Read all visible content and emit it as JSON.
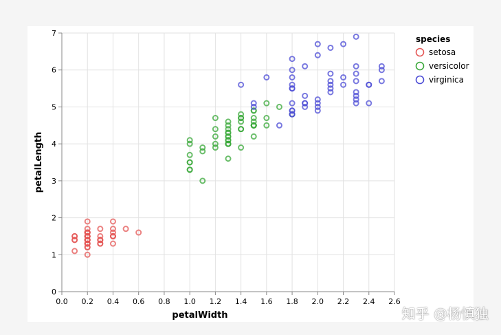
{
  "watermark": "知乎 @杨慎独",
  "chart_data": {
    "type": "scatter",
    "title": "",
    "xlabel": "petalWidth",
    "ylabel": "petalLength",
    "xlim": [
      0,
      2.6
    ],
    "ylim": [
      0,
      7
    ],
    "x_ticks": [
      "0.0",
      "0.2",
      "0.4",
      "0.6",
      "0.8",
      "1.0",
      "1.2",
      "1.4",
      "1.6",
      "1.8",
      "2.0",
      "2.2",
      "2.4",
      "2.6"
    ],
    "y_ticks": [
      "0",
      "1",
      "2",
      "3",
      "4",
      "5",
      "6",
      "7"
    ],
    "grid": true,
    "legend": {
      "title": "species",
      "position": "top-right"
    },
    "series": [
      {
        "name": "setosa",
        "color": "#e45756",
        "points": [
          [
            0.2,
            1.4
          ],
          [
            0.2,
            1.4
          ],
          [
            0.2,
            1.3
          ],
          [
            0.2,
            1.5
          ],
          [
            0.2,
            1.4
          ],
          [
            0.4,
            1.7
          ],
          [
            0.3,
            1.4
          ],
          [
            0.2,
            1.5
          ],
          [
            0.2,
            1.4
          ],
          [
            0.1,
            1.5
          ],
          [
            0.2,
            1.5
          ],
          [
            0.2,
            1.6
          ],
          [
            0.1,
            1.4
          ],
          [
            0.1,
            1.1
          ],
          [
            0.2,
            1.2
          ],
          [
            0.4,
            1.5
          ],
          [
            0.4,
            1.3
          ],
          [
            0.3,
            1.4
          ],
          [
            0.3,
            1.7
          ],
          [
            0.3,
            1.5
          ],
          [
            0.2,
            1.7
          ],
          [
            0.4,
            1.5
          ],
          [
            0.2,
            1.0
          ],
          [
            0.5,
            1.7
          ],
          [
            0.2,
            1.9
          ],
          [
            0.2,
            1.6
          ],
          [
            0.4,
            1.6
          ],
          [
            0.2,
            1.5
          ],
          [
            0.2,
            1.4
          ],
          [
            0.2,
            1.6
          ],
          [
            0.2,
            1.6
          ],
          [
            0.4,
            1.5
          ],
          [
            0.1,
            1.5
          ],
          [
            0.2,
            1.4
          ],
          [
            0.2,
            1.5
          ],
          [
            0.2,
            1.2
          ],
          [
            0.2,
            1.3
          ],
          [
            0.1,
            1.4
          ],
          [
            0.2,
            1.3
          ],
          [
            0.2,
            1.5
          ],
          [
            0.3,
            1.3
          ],
          [
            0.3,
            1.3
          ],
          [
            0.2,
            1.3
          ],
          [
            0.6,
            1.6
          ],
          [
            0.4,
            1.9
          ],
          [
            0.3,
            1.4
          ],
          [
            0.2,
            1.6
          ],
          [
            0.2,
            1.4
          ],
          [
            0.2,
            1.5
          ],
          [
            0.2,
            1.4
          ]
        ]
      },
      {
        "name": "versicolor",
        "color": "#3aa83a",
        "points": [
          [
            1.4,
            4.7
          ],
          [
            1.5,
            4.5
          ],
          [
            1.5,
            4.9
          ],
          [
            1.3,
            4.0
          ],
          [
            1.5,
            4.6
          ],
          [
            1.3,
            4.5
          ],
          [
            1.6,
            4.7
          ],
          [
            1.0,
            3.3
          ],
          [
            1.3,
            4.6
          ],
          [
            1.4,
            3.9
          ],
          [
            1.0,
            3.5
          ],
          [
            1.5,
            4.2
          ],
          [
            1.0,
            4.0
          ],
          [
            1.4,
            4.7
          ],
          [
            1.3,
            3.6
          ],
          [
            1.4,
            4.4
          ],
          [
            1.5,
            4.5
          ],
          [
            1.0,
            4.1
          ],
          [
            1.5,
            4.5
          ],
          [
            1.1,
            3.9
          ],
          [
            1.8,
            4.8
          ],
          [
            1.3,
            4.0
          ],
          [
            1.5,
            4.9
          ],
          [
            1.2,
            4.7
          ],
          [
            1.3,
            4.3
          ],
          [
            1.4,
            4.4
          ],
          [
            1.4,
            4.8
          ],
          [
            1.7,
            5.0
          ],
          [
            1.5,
            4.5
          ],
          [
            1.0,
            3.5
          ],
          [
            1.1,
            3.8
          ],
          [
            1.0,
            3.7
          ],
          [
            1.2,
            3.9
          ],
          [
            1.6,
            5.1
          ],
          [
            1.5,
            4.5
          ],
          [
            1.6,
            4.5
          ],
          [
            1.5,
            4.7
          ],
          [
            1.3,
            4.4
          ],
          [
            1.3,
            4.1
          ],
          [
            1.3,
            4.0
          ],
          [
            1.2,
            4.4
          ],
          [
            1.4,
            4.6
          ],
          [
            1.2,
            4.0
          ],
          [
            1.0,
            3.3
          ],
          [
            1.3,
            4.2
          ],
          [
            1.2,
            4.2
          ],
          [
            1.3,
            4.2
          ],
          [
            1.3,
            4.3
          ],
          [
            1.1,
            3.0
          ],
          [
            1.3,
            4.1
          ]
        ]
      },
      {
        "name": "virginica",
        "color": "#4c4cd6",
        "points": [
          [
            2.5,
            6.0
          ],
          [
            1.9,
            5.1
          ],
          [
            2.1,
            5.9
          ],
          [
            1.8,
            5.6
          ],
          [
            2.2,
            5.8
          ],
          [
            2.1,
            6.6
          ],
          [
            1.7,
            4.5
          ],
          [
            1.8,
            6.3
          ],
          [
            1.8,
            5.8
          ],
          [
            2.5,
            6.1
          ],
          [
            2.0,
            5.1
          ],
          [
            1.9,
            5.3
          ],
          [
            2.1,
            5.5
          ],
          [
            2.0,
            5.0
          ],
          [
            2.4,
            5.1
          ],
          [
            2.3,
            5.3
          ],
          [
            1.8,
            5.5
          ],
          [
            2.2,
            6.7
          ],
          [
            2.3,
            6.9
          ],
          [
            1.5,
            5.0
          ],
          [
            2.3,
            5.7
          ],
          [
            2.0,
            4.9
          ],
          [
            2.0,
            6.7
          ],
          [
            1.8,
            4.9
          ],
          [
            2.1,
            5.7
          ],
          [
            1.8,
            6.0
          ],
          [
            1.8,
            4.8
          ],
          [
            1.8,
            4.9
          ],
          [
            2.1,
            5.6
          ],
          [
            1.6,
            5.8
          ],
          [
            1.9,
            6.1
          ],
          [
            2.0,
            6.4
          ],
          [
            2.2,
            5.6
          ],
          [
            1.5,
            5.1
          ],
          [
            1.4,
            5.6
          ],
          [
            2.3,
            6.1
          ],
          [
            2.4,
            5.6
          ],
          [
            1.8,
            5.5
          ],
          [
            1.8,
            4.8
          ],
          [
            2.1,
            5.4
          ],
          [
            2.4,
            5.6
          ],
          [
            2.3,
            5.1
          ],
          [
            1.9,
            5.1
          ],
          [
            2.3,
            5.9
          ],
          [
            2.5,
            5.7
          ],
          [
            2.3,
            5.2
          ],
          [
            1.9,
            5.0
          ],
          [
            2.0,
            5.2
          ],
          [
            2.3,
            5.4
          ],
          [
            1.8,
            5.1
          ]
        ]
      }
    ]
  }
}
